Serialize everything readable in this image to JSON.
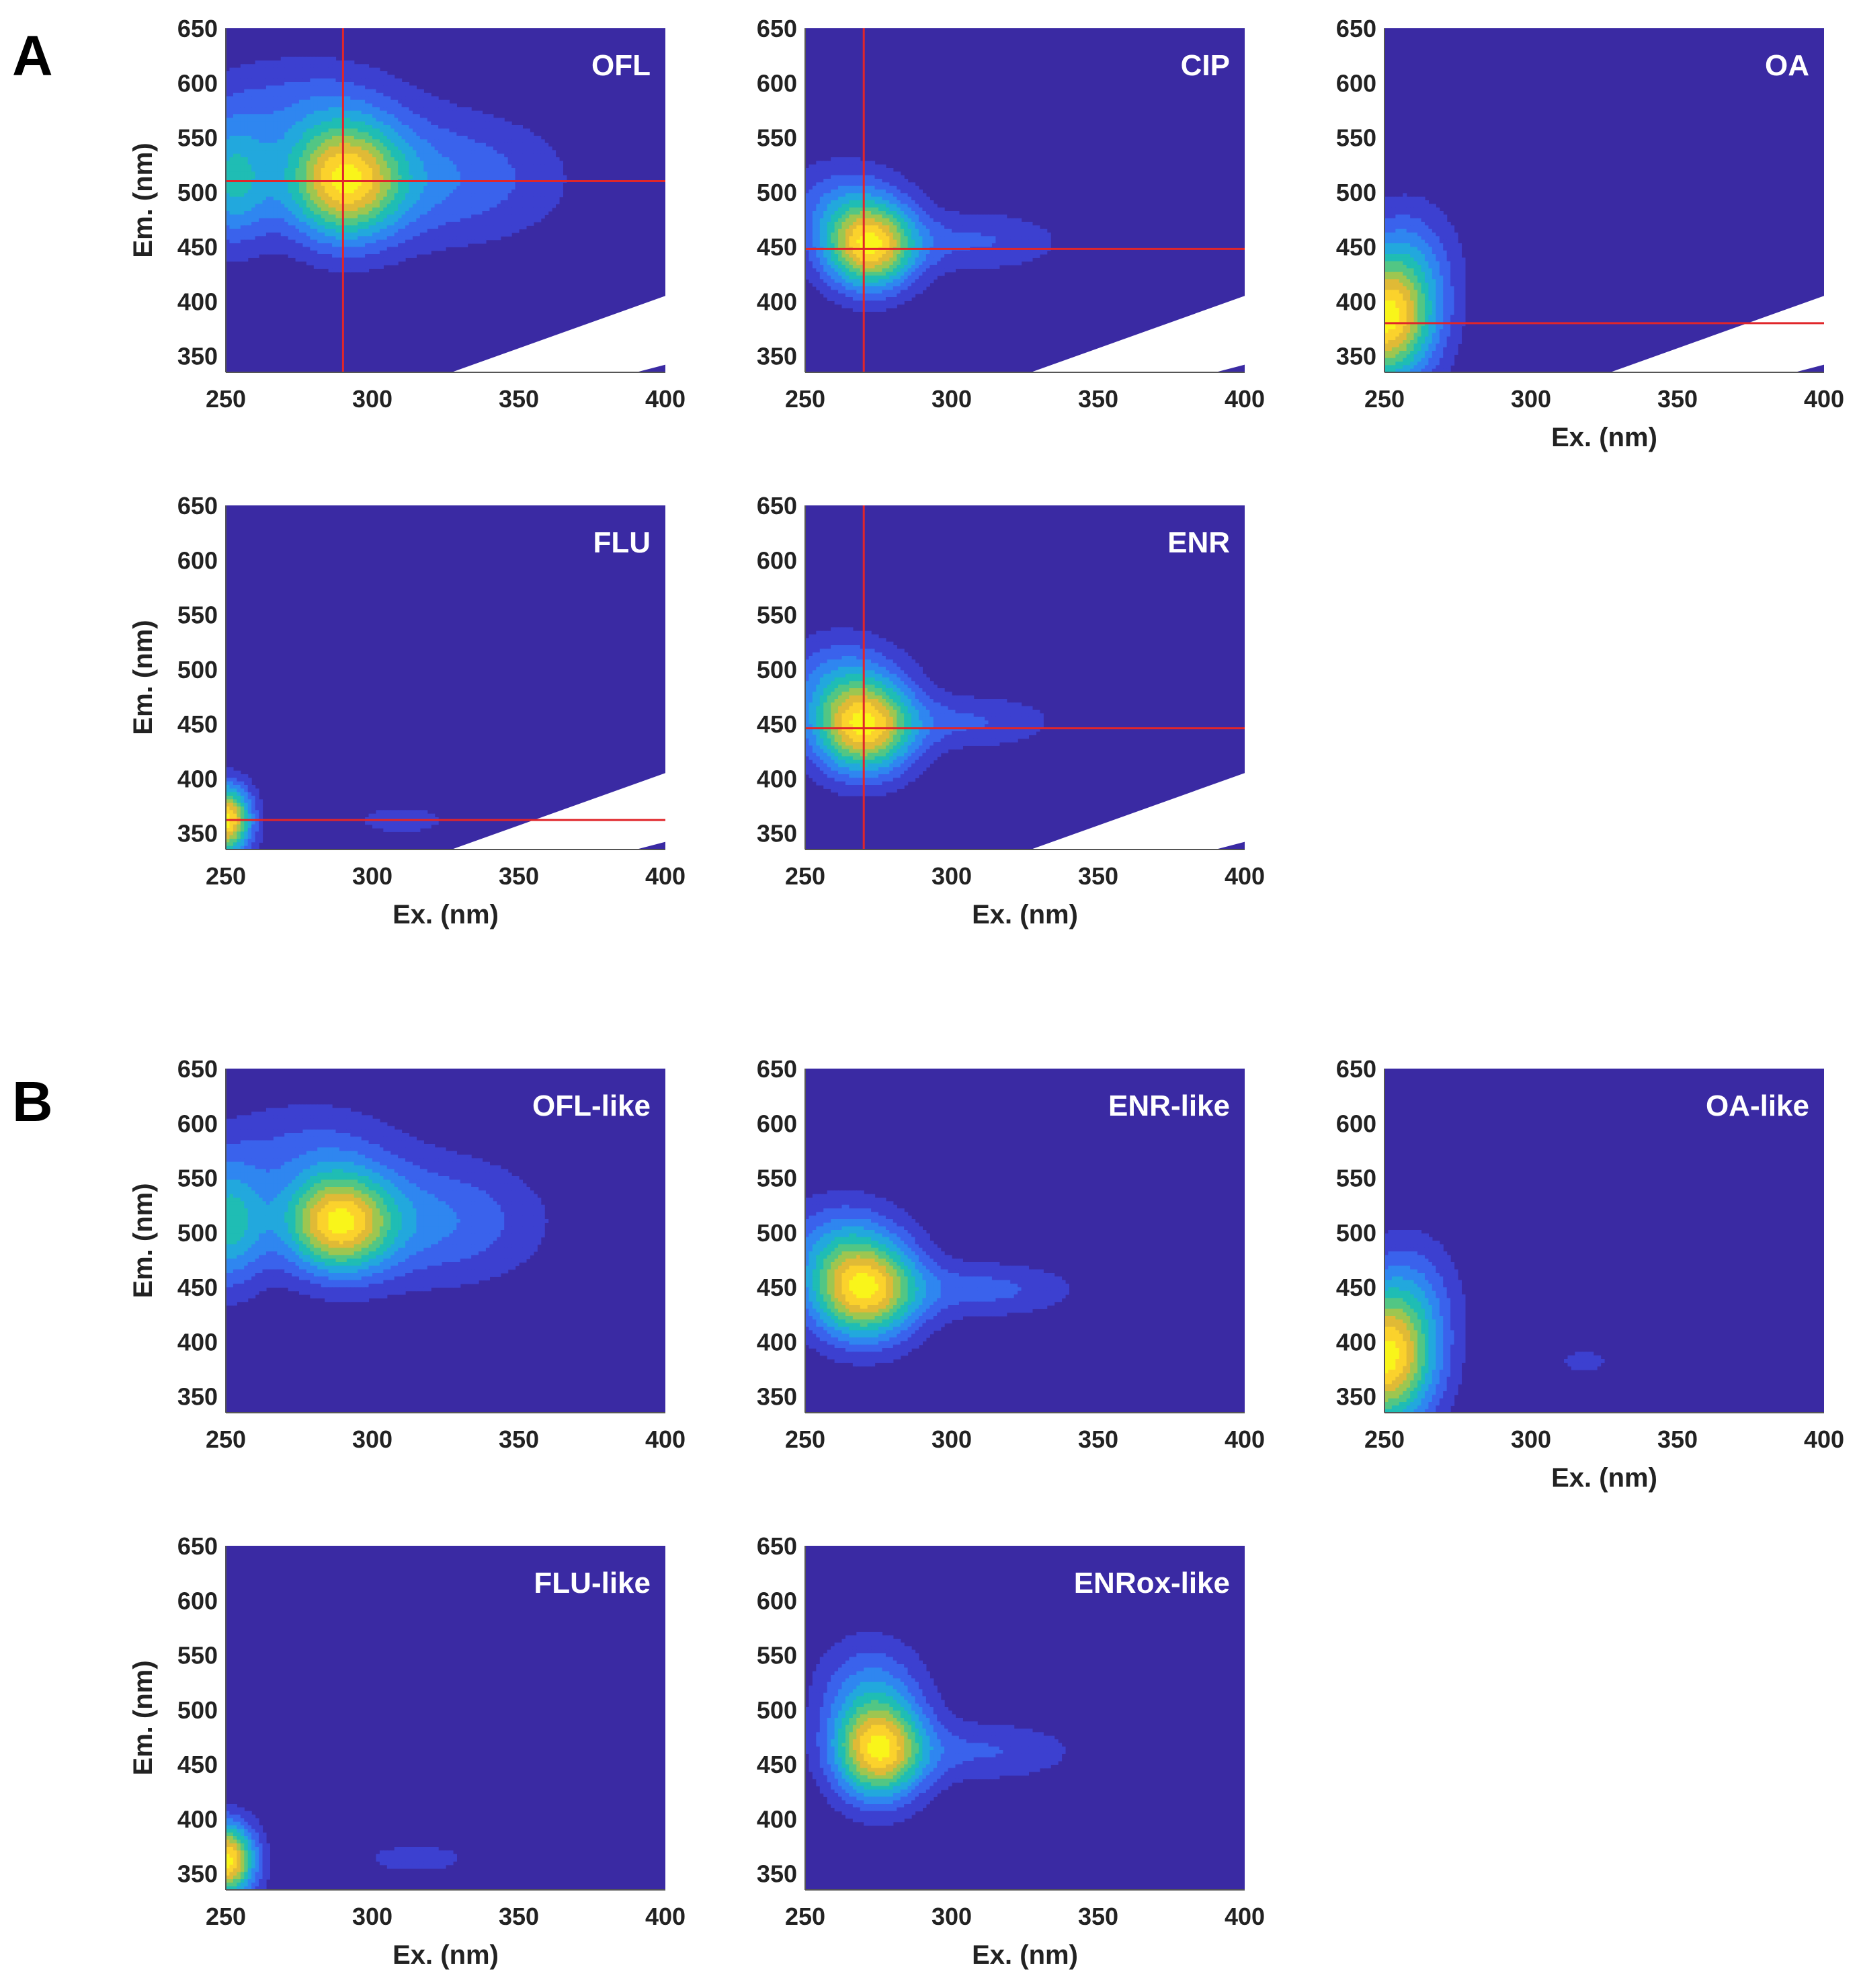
{
  "figure": {
    "panel_labels": [
      "A",
      "B"
    ],
    "colors": {
      "background": "#3a2aa3",
      "contour_levels": [
        "#3a2aa3",
        "#3c40d0",
        "#3a62ec",
        "#2f86f0",
        "#22a8dd",
        "#1fbdb4",
        "#52c684",
        "#9ec650",
        "#e0ba36",
        "#fbd22c",
        "#f9f51a"
      ],
      "crosshair": "#e0262a",
      "contour_line": "#1a1a1a",
      "blank_region": "#ffffff"
    }
  },
  "chart_data": [
    {
      "type": "heatmap",
      "group": "A",
      "title": "OFL",
      "xlabel": "",
      "ylabel": "Em. (nm)",
      "xlim": [
        250,
        400
      ],
      "ylim": [
        335,
        650
      ],
      "xticks": [
        "250",
        "300",
        "350",
        "400"
      ],
      "yticks": [
        "350",
        "400",
        "450",
        "500",
        "550",
        "600",
        "650"
      ],
      "crosshair": {
        "x": 290,
        "y": 510
      },
      "blank_corner": true,
      "peaks": [
        {
          "x": 290,
          "y": 510,
          "amp": 1.0,
          "sx": 14,
          "sy": 38
        },
        {
          "x": 252,
          "y": 510,
          "amp": 0.55,
          "sx": 10,
          "sy": 40
        },
        {
          "x": 325,
          "y": 512,
          "amp": 0.32,
          "sx": 28,
          "sy": 42
        },
        {
          "x": 275,
          "y": 580,
          "amp": 0.22,
          "sx": 25,
          "sy": 35
        }
      ]
    },
    {
      "type": "heatmap",
      "group": "A",
      "title": "CIP",
      "xlabel": "",
      "ylabel": "",
      "xlim": [
        250,
        400
      ],
      "ylim": [
        335,
        650
      ],
      "xticks": [
        "250",
        "300",
        "350",
        "400"
      ],
      "yticks": [
        "350",
        "400",
        "450",
        "500",
        "550",
        "600",
        "650"
      ],
      "crosshair": {
        "x": 270,
        "y": 448
      },
      "blank_corner": true,
      "peaks": [
        {
          "x": 272,
          "y": 450,
          "amp": 1.0,
          "sx": 11,
          "sy": 28
        },
        {
          "x": 310,
          "y": 455,
          "amp": 0.22,
          "sx": 20,
          "sy": 20
        },
        {
          "x": 262,
          "y": 490,
          "amp": 0.25,
          "sx": 15,
          "sy": 30
        }
      ]
    },
    {
      "type": "heatmap",
      "group": "A",
      "title": "OA",
      "xlabel": "Ex. (nm)",
      "ylabel": "",
      "xlim": [
        250,
        400
      ],
      "ylim": [
        335,
        650
      ],
      "xticks": [
        "250",
        "300",
        "350",
        "400"
      ],
      "yticks": [
        "350",
        "400",
        "450",
        "500",
        "550",
        "600",
        "650"
      ],
      "crosshair": {
        "x": null,
        "y": 380
      },
      "blank_corner": true,
      "peaks": [
        {
          "x": 250,
          "y": 382,
          "amp": 1.0,
          "sx": 12,
          "sy": 40
        },
        {
          "x": 258,
          "y": 440,
          "amp": 0.25,
          "sx": 12,
          "sy": 40
        }
      ]
    },
    {
      "type": "heatmap",
      "group": "A",
      "title": "FLU",
      "xlabel": "Ex. (nm)",
      "ylabel": "Em. (nm)",
      "xlim": [
        250,
        400
      ],
      "ylim": [
        335,
        650
      ],
      "xticks": [
        "250",
        "300",
        "350",
        "400"
      ],
      "yticks": [
        "350",
        "400",
        "450",
        "500",
        "550",
        "600",
        "650"
      ],
      "crosshair": {
        "x": null,
        "y": 362
      },
      "blank_corner": true,
      "peaks": [
        {
          "x": 250,
          "y": 362,
          "amp": 1.0,
          "sx": 6,
          "sy": 22
        },
        {
          "x": 310,
          "y": 362,
          "amp": 0.14,
          "sx": 14,
          "sy": 12
        }
      ]
    },
    {
      "type": "heatmap",
      "group": "A",
      "title": "ENR",
      "xlabel": "Ex. (nm)",
      "ylabel": "",
      "xlim": [
        250,
        400
      ],
      "ylim": [
        335,
        650
      ],
      "xticks": [
        "250",
        "300",
        "350",
        "400"
      ],
      "yticks": [
        "350",
        "400",
        "450",
        "500",
        "550",
        "600",
        "650"
      ],
      "crosshair": {
        "x": 270,
        "y": 446
      },
      "blank_corner": true,
      "peaks": [
        {
          "x": 270,
          "y": 446,
          "amp": 1.0,
          "sx": 12,
          "sy": 30
        },
        {
          "x": 308,
          "y": 452,
          "amp": 0.22,
          "sx": 20,
          "sy": 18
        },
        {
          "x": 262,
          "y": 490,
          "amp": 0.3,
          "sx": 15,
          "sy": 32
        }
      ]
    },
    {
      "type": "heatmap",
      "group": "B",
      "title": "OFL-like",
      "xlabel": "",
      "ylabel": "Em. (nm)",
      "xlim": [
        250,
        400
      ],
      "ylim": [
        335,
        650
      ],
      "xticks": [
        "250",
        "300",
        "350",
        "400"
      ],
      "yticks": [
        "350",
        "400",
        "450",
        "500",
        "550",
        "600",
        "650"
      ],
      "crosshair": null,
      "blank_corner": false,
      "peaks": [
        {
          "x": 288,
          "y": 508,
          "amp": 1.0,
          "sx": 13,
          "sy": 32
        },
        {
          "x": 250,
          "y": 508,
          "amp": 0.6,
          "sx": 10,
          "sy": 40
        },
        {
          "x": 322,
          "y": 510,
          "amp": 0.34,
          "sx": 25,
          "sy": 40
        },
        {
          "x": 278,
          "y": 575,
          "amp": 0.22,
          "sx": 22,
          "sy": 35
        }
      ]
    },
    {
      "type": "heatmap",
      "group": "B",
      "title": "ENR-like",
      "xlabel": "",
      "ylabel": "",
      "xlim": [
        250,
        400
      ],
      "ylim": [
        335,
        650
      ],
      "xticks": [
        "250",
        "300",
        "350",
        "400"
      ],
      "yticks": [
        "350",
        "400",
        "450",
        "500",
        "550",
        "600",
        "650"
      ],
      "crosshair": null,
      "blank_corner": false,
      "peaks": [
        {
          "x": 270,
          "y": 446,
          "amp": 1.0,
          "sx": 13,
          "sy": 32
        },
        {
          "x": 312,
          "y": 448,
          "amp": 0.25,
          "sx": 22,
          "sy": 18
        },
        {
          "x": 262,
          "y": 490,
          "amp": 0.3,
          "sx": 15,
          "sy": 32
        }
      ]
    },
    {
      "type": "heatmap",
      "group": "B",
      "title": "OA-like",
      "xlabel": "Ex. (nm)",
      "ylabel": "",
      "xlim": [
        250,
        400
      ],
      "ylim": [
        335,
        650
      ],
      "xticks": [
        "250",
        "300",
        "350",
        "400"
      ],
      "yticks": [
        "350",
        "400",
        "450",
        "500",
        "550",
        "600",
        "650"
      ],
      "crosshair": null,
      "blank_corner": false,
      "peaks": [
        {
          "x": 250,
          "y": 382,
          "amp": 1.0,
          "sx": 12,
          "sy": 42
        },
        {
          "x": 258,
          "y": 445,
          "amp": 0.25,
          "sx": 12,
          "sy": 40
        },
        {
          "x": 318,
          "y": 382,
          "amp": 0.13,
          "sx": 9,
          "sy": 12
        }
      ]
    },
    {
      "type": "heatmap",
      "group": "B",
      "title": "FLU-like",
      "xlabel": "Ex. (nm)",
      "ylabel": "Em. (nm)",
      "xlim": [
        250,
        400
      ],
      "ylim": [
        335,
        650
      ],
      "xticks": [
        "250",
        "300",
        "350",
        "400"
      ],
      "yticks": [
        "350",
        "400",
        "450",
        "500",
        "550",
        "600",
        "650"
      ],
      "crosshair": null,
      "blank_corner": false,
      "peaks": [
        {
          "x": 250,
          "y": 362,
          "amp": 1.0,
          "sx": 7,
          "sy": 24
        },
        {
          "x": 315,
          "y": 364,
          "amp": 0.14,
          "sx": 16,
          "sy": 12
        }
      ]
    },
    {
      "type": "heatmap",
      "group": "B",
      "title": "ENRox-like",
      "xlabel": "Ex. (nm)",
      "ylabel": "",
      "xlim": [
        250,
        400
      ],
      "ylim": [
        335,
        650
      ],
      "xticks": [
        "250",
        "300",
        "350",
        "400"
      ],
      "yticks": [
        "350",
        "400",
        "450",
        "500",
        "550",
        "600",
        "650"
      ],
      "crosshair": null,
      "blank_corner": false,
      "peaks": [
        {
          "x": 275,
          "y": 462,
          "amp": 1.0,
          "sx": 11,
          "sy": 32
        },
        {
          "x": 312,
          "y": 462,
          "amp": 0.22,
          "sx": 22,
          "sy": 20
        },
        {
          "x": 272,
          "y": 520,
          "amp": 0.3,
          "sx": 13,
          "sy": 35
        }
      ]
    }
  ]
}
